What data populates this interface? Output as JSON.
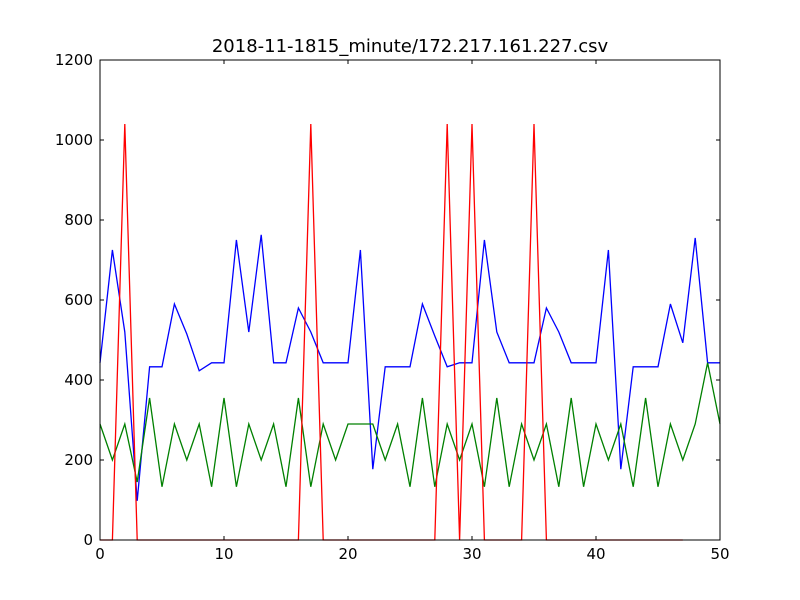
{
  "chart_data": {
    "type": "line",
    "title": "2018-11-1815_minute/172.217.161.227.csv",
    "xlabel": "",
    "ylabel": "",
    "xlim": [
      0,
      50
    ],
    "ylim": [
      0,
      1200
    ],
    "xticks": [
      0,
      10,
      20,
      30,
      40,
      50
    ],
    "yticks": [
      0,
      200,
      400,
      600,
      800,
      1000,
      1200
    ],
    "grid": false,
    "x": [
      0,
      1,
      2,
      3,
      4,
      5,
      6,
      7,
      8,
      9,
      10,
      11,
      12,
      13,
      14,
      15,
      16,
      17,
      18,
      19,
      20,
      21,
      22,
      23,
      24,
      25,
      26,
      27,
      28,
      29,
      30,
      31,
      32,
      33,
      34,
      35,
      36,
      37,
      38,
      39,
      40,
      41,
      42,
      43,
      44,
      45,
      46,
      47,
      48,
      49,
      50
    ],
    "series": [
      {
        "color": "#0000ff",
        "values": [
          443,
          725,
          520,
          98,
          433,
          433,
          590,
          515,
          423,
          443,
          443,
          750,
          520,
          763,
          443,
          443,
          580,
          520,
          443,
          443,
          443,
          725,
          177,
          433,
          433,
          433,
          590,
          510,
          433,
          443,
          443,
          750,
          520,
          443,
          443,
          443,
          580,
          520,
          443,
          443,
          443,
          725,
          177,
          433,
          433,
          433,
          590,
          493,
          755,
          443,
          443
        ]
      },
      {
        "color": "#008000",
        "values": [
          290,
          200,
          290,
          145,
          355,
          133,
          290,
          200,
          290,
          133,
          355,
          133,
          290,
          200,
          290,
          133,
          355,
          133,
          290,
          200,
          290,
          290,
          290,
          200,
          290,
          133,
          355,
          133,
          290,
          200,
          290,
          133,
          355,
          133,
          290,
          200,
          290,
          133,
          355,
          133,
          290,
          200,
          290,
          133,
          355,
          133,
          290,
          200,
          290,
          443,
          290
        ]
      },
      {
        "color": "#ff0000",
        "values": [
          0,
          0,
          1040,
          0,
          0,
          0,
          0,
          0,
          0,
          0,
          0,
          0,
          0,
          0,
          0,
          0,
          0,
          1040,
          0,
          0,
          0,
          0,
          0,
          0,
          0,
          0,
          0,
          0,
          1040,
          0,
          1040,
          0,
          0,
          0,
          0,
          1040,
          0,
          0,
          0,
          0,
          0,
          0,
          0,
          0,
          0,
          0,
          0,
          0,
          null,
          null,
          null
        ]
      }
    ]
  }
}
